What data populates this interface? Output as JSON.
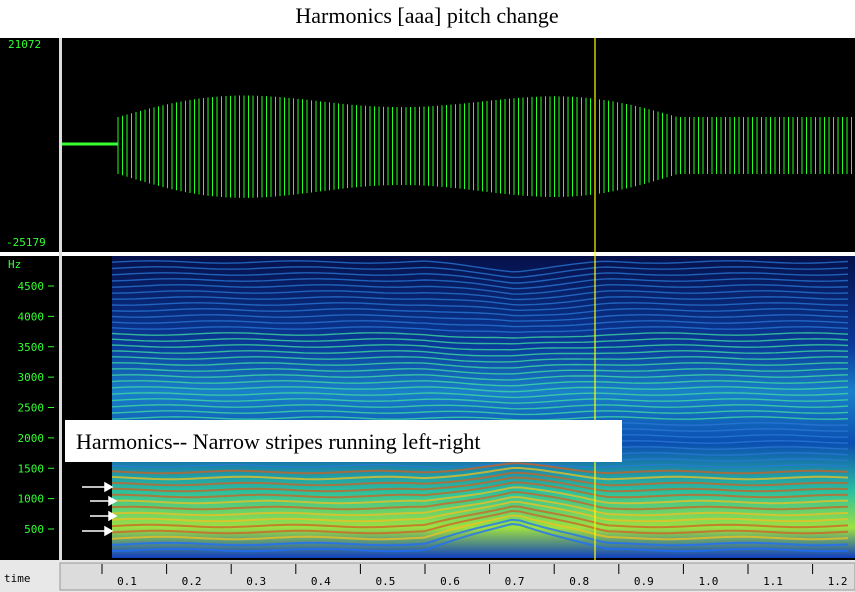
{
  "title": "Harmonics [aaa] pitch change",
  "waveform": {
    "ylim": [
      -25179,
      21072
    ]
  },
  "spectrogram": {
    "unit_label": "Hz",
    "yticks": [
      4500,
      4000,
      3500,
      3000,
      2500,
      2000,
      1500,
      1000,
      500
    ]
  },
  "time_axis": {
    "label": "time",
    "ticks": [
      0.1,
      0.2,
      0.3,
      0.4,
      0.5,
      0.6,
      0.7,
      0.8,
      0.9,
      {
        "value": 1,
        "label": "1.0"
      },
      1.1,
      1.2
    ]
  },
  "annotation": "Harmonics-- Narrow stripes running left-right"
}
